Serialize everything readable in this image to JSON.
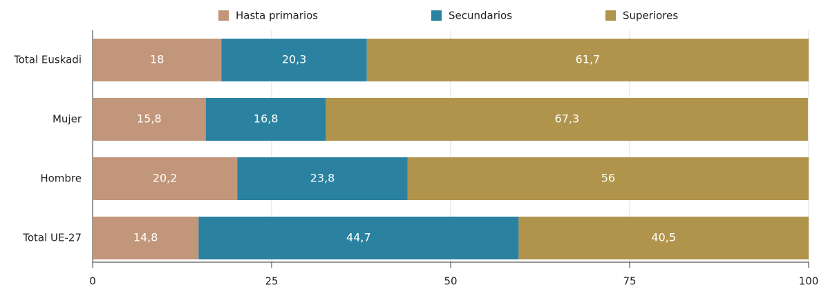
{
  "chart_data": {
    "type": "stacked_barh",
    "categories": [
      "Total Euskadi",
      "Mujer",
      "Hombre",
      "Total UE-27"
    ],
    "series": [
      {
        "name": "Hasta primarios",
        "color": "#c2967a",
        "values": [
          18,
          15.8,
          20.2,
          14.8
        ],
        "value_labels": [
          "18",
          "15,8",
          "20,2",
          "14,8"
        ]
      },
      {
        "name": "Secundarios",
        "color": "#2a82a0",
        "values": [
          20.3,
          16.8,
          23.8,
          44.7
        ],
        "value_labels": [
          "20,3",
          "16,8",
          "23,8",
          "44,7"
        ]
      },
      {
        "name": "Superiores",
        "color": "#b0944c",
        "values": [
          61.7,
          67.3,
          56,
          40.5
        ],
        "value_labels": [
          "61,7",
          "67,3",
          "56",
          "40,5"
        ]
      }
    ],
    "xlim": [
      0,
      100
    ],
    "xticks": [
      0,
      25,
      50,
      75,
      100
    ],
    "grid": true,
    "legend": "top"
  }
}
